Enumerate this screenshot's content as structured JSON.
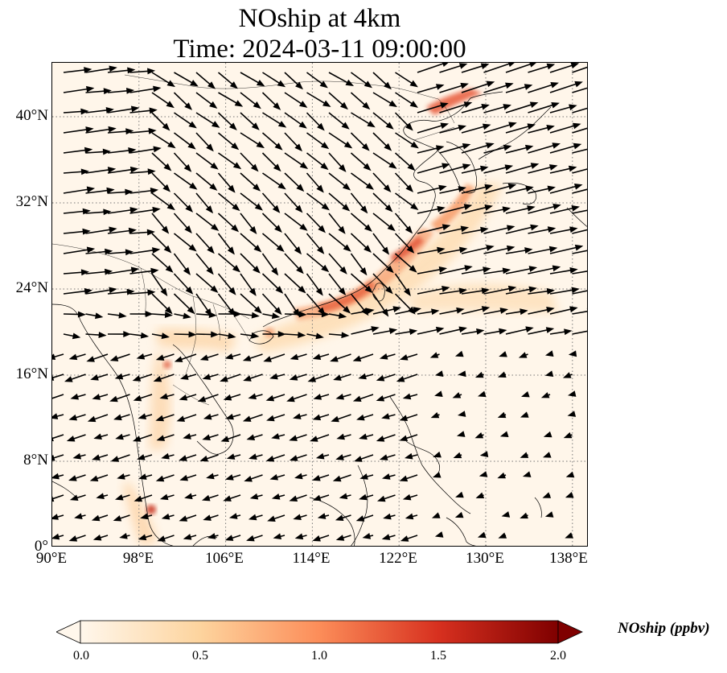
{
  "title": {
    "line1": "NOship at 4km",
    "line2": "Time: 2024-03-11 09:00:00"
  },
  "map": {
    "lon_range": [
      90,
      139.5
    ],
    "lat_range": [
      0,
      45
    ],
    "x_ticks": [
      "90°E",
      "98°E",
      "106°E",
      "114°E",
      "122°E",
      "130°E",
      "138°E"
    ],
    "y_ticks": [
      "0°",
      "8°N",
      "16°N",
      "24°N",
      "32°N",
      "40°N"
    ],
    "grid": "dotted",
    "features": [
      "coastlines",
      "country-borders",
      "wind-vectors",
      "NOship-concentration-field"
    ]
  },
  "colorbar": {
    "label": "NOship (ppbv)",
    "min": 0.0,
    "max": 2.0,
    "ticks": [
      "0.0",
      "0.5",
      "1.0",
      "1.5",
      "2.0"
    ],
    "colormap": "OrRd",
    "colors": [
      "#fff7ec",
      "#fdd49e",
      "#fc8d59",
      "#d7301f",
      "#7f0000"
    ],
    "extend": "both"
  }
}
